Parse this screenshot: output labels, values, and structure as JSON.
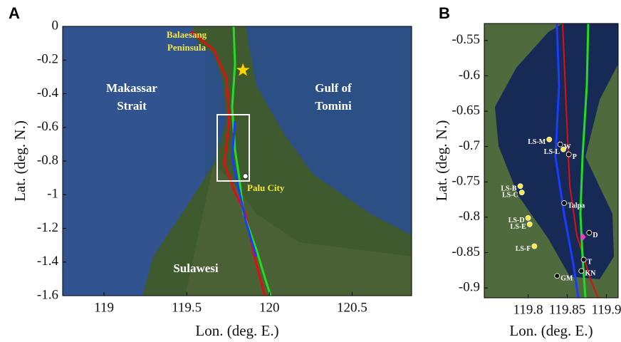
{
  "panels": [
    {
      "label": "A",
      "xlabel": "Lon. (deg. E.)",
      "ylabel": "Lat. (deg. N.)",
      "xlim": [
        118.75,
        120.86
      ],
      "ylim": [
        -1.6,
        0
      ],
      "xticks": [
        119,
        119.5,
        120,
        120.5
      ],
      "yticks": [
        0,
        -0.2,
        -0.4,
        -0.6,
        -0.8,
        -1,
        -1.2,
        -1.4,
        -1.6
      ],
      "places": [
        "Balaesang",
        "Peninsula",
        "Makassar",
        "Strait",
        "Gulf of",
        "Tomini",
        "Palu City",
        "Sulawesi"
      ],
      "markers": [
        {
          "lon": 119.84,
          "lat": -0.26,
          "color": "#ffd700"
        },
        {
          "lon": 119.855,
          "lat": -0.89,
          "color": "#ffffff"
        }
      ]
    },
    {
      "label": "B",
      "xlabel": "Lon. (deg. E.)",
      "ylabel": "Lat. (deg. N.)",
      "xlim": [
        119.744,
        119.915
      ],
      "ylim": [
        -0.914,
        -0.526
      ],
      "xticks": [
        119.8,
        119.85,
        119.9
      ],
      "yticks": [
        -0.55,
        -0.6,
        -0.65,
        -0.7,
        -0.75,
        -0.8,
        -0.85,
        -0.9
      ],
      "stations": [
        {
          "name": "LS-M",
          "lon": 119.827,
          "lat": -0.69,
          "color": "#ffeb3b"
        },
        {
          "name": "W",
          "lon": 119.841,
          "lat": -0.697,
          "color": "#111111"
        },
        {
          "name": "LS-L",
          "lon": 119.845,
          "lat": -0.704,
          "color": "#ffeb3b"
        },
        {
          "name": "P",
          "lon": 119.852,
          "lat": -0.711,
          "color": "#111111"
        },
        {
          "name": "LS-B",
          "lon": 119.79,
          "lat": -0.756,
          "color": "#ffeb3b"
        },
        {
          "name": "LS-C",
          "lon": 119.792,
          "lat": -0.765,
          "color": "#ffeb3b"
        },
        {
          "name": "Talpa",
          "lon": 119.846,
          "lat": -0.78,
          "color": "#111111"
        },
        {
          "name": "LS-D",
          "lon": 119.8,
          "lat": -0.801,
          "color": "#ffeb3b"
        },
        {
          "name": "LS-E",
          "lon": 119.802,
          "lat": -0.81,
          "color": "#ffeb3b"
        },
        {
          "name": "D",
          "lon": 119.878,
          "lat": -0.822,
          "color": "#111111"
        },
        {
          "name": "LS-F",
          "lon": 119.808,
          "lat": -0.841,
          "color": "#ffeb3b"
        },
        {
          "name": "T",
          "lon": 119.871,
          "lat": -0.86,
          "color": "#111111"
        },
        {
          "name": "KN",
          "lon": 119.868,
          "lat": -0.876,
          "color": "#111111"
        },
        {
          "name": "GM",
          "lon": 119.837,
          "lat": -0.883,
          "color": "#111111"
        }
      ],
      "markers": [
        {
          "lon": 119.87,
          "lat": -0.828,
          "color": "#ff33cc"
        }
      ]
    }
  ]
}
